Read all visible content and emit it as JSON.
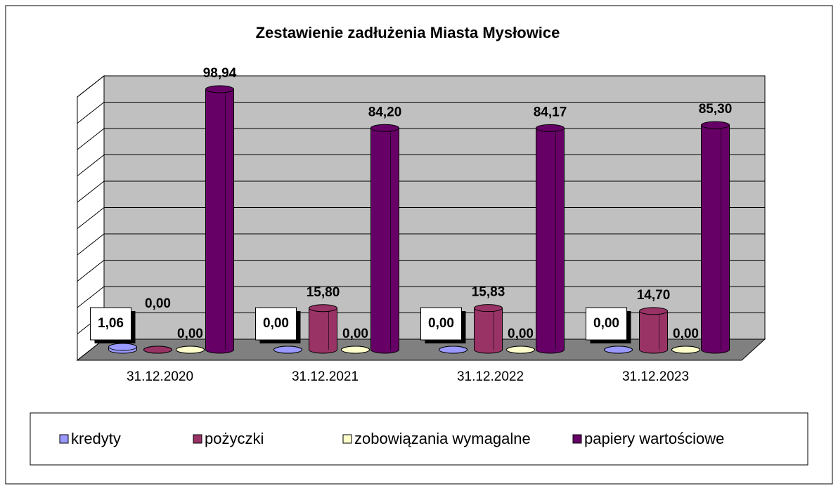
{
  "chart_data": {
    "type": "bar3d",
    "title": "Zestawienie zadłużenia Miasta Mysłowice",
    "categories": [
      "31.12.2020",
      "31.12.2021",
      "31.12.2022",
      "31.12.2023"
    ],
    "series": [
      {
        "name": "kredyty",
        "color": "#9999ff",
        "values": [
          1.06,
          0,
          0,
          0
        ],
        "value_labels": [
          "1,06",
          "0,00",
          "0,00",
          "0,00"
        ]
      },
      {
        "name": "pożyczki",
        "color": "#993366",
        "values": [
          0,
          15.8,
          15.83,
          14.7
        ],
        "value_labels": [
          "0,00",
          "15,80",
          "15,83",
          "14,70"
        ]
      },
      {
        "name": "zobowiązania wymagalne",
        "color": "#ffffcc",
        "values": [
          0,
          0,
          0,
          0
        ],
        "value_labels": [
          "0,00",
          "0,00",
          "0,00",
          "0,00"
        ]
      },
      {
        "name": "papiery wartościowe",
        "color": "#660066",
        "values": [
          98.94,
          84.2,
          84.17,
          85.3
        ],
        "value_labels": [
          "98,94",
          "84,20",
          "84,17",
          "85,30"
        ]
      }
    ],
    "ylim": [
      0,
      100
    ],
    "yticks": [
      0,
      10,
      20,
      30,
      40,
      50,
      60,
      70,
      80,
      90,
      100
    ],
    "grid": true,
    "legend": "bottom"
  }
}
